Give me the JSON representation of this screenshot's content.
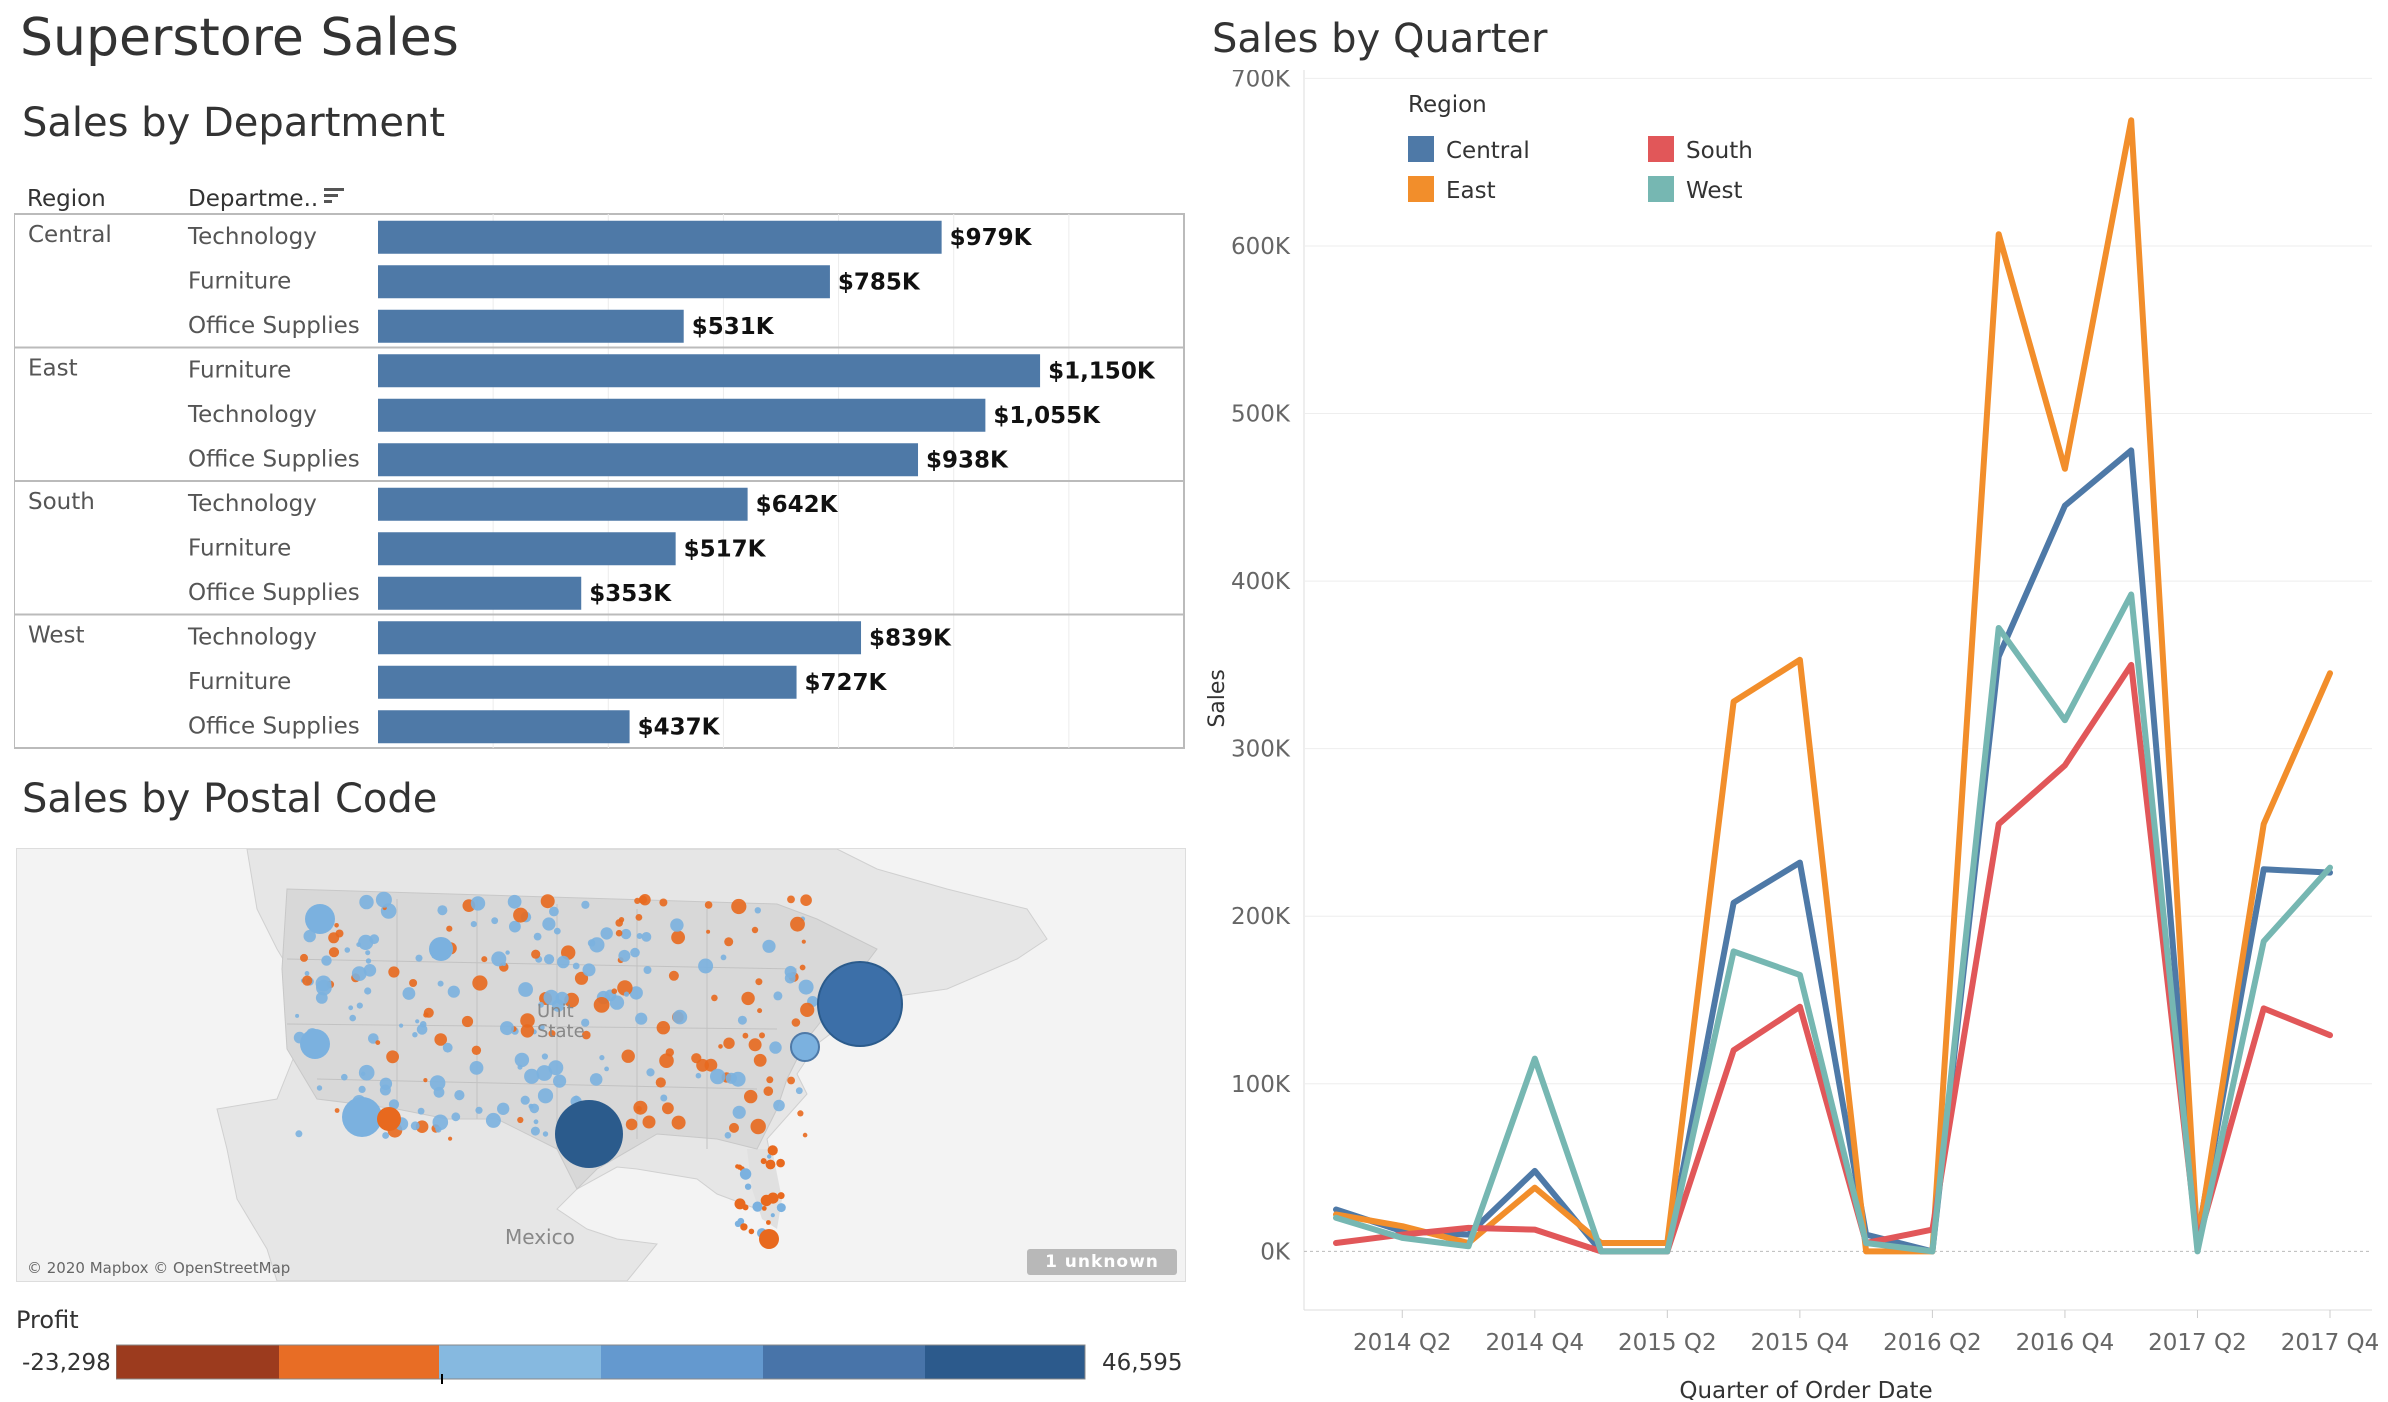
{
  "dashboard": {
    "title": "Superstore Sales"
  },
  "department_section": {
    "title": "Sales by Department",
    "region_header": "Region",
    "department_header": "Departme..",
    "sort_icon": "sort-icon"
  },
  "postal_section": {
    "title": "Sales by Postal Code",
    "attribution": "© 2020 Mapbox © OpenStreetMap",
    "unknown_badge": "1 unknown",
    "country_label": "Mexico",
    "us_label_line1": "Unit",
    "us_label_line2": "State",
    "profit_legend": {
      "title": "Profit",
      "min": "-23,298",
      "max": "46,595",
      "colors": [
        "#9c3b1e",
        "#e86d25",
        "#86b9e0",
        "#6499cf",
        "#4874a9",
        "#2c5a8c"
      ]
    }
  },
  "quarter_section": {
    "title": "Sales by Quarter",
    "legend_title": "Region"
  },
  "colors": {
    "bar": "#4e79a7",
    "central": "#4e79a7",
    "east": "#f28e2b",
    "south": "#e15759",
    "west": "#76b7b2",
    "profit_negative": "#e8691e",
    "profit_positive": "#7bb1df",
    "profit_high": "#2b5b8c"
  },
  "chart_data": [
    {
      "type": "bar",
      "orientation": "horizontal",
      "title": "Sales by Department",
      "row_headers": [
        "Region",
        "Departme.."
      ],
      "groups": [
        {
          "region": "Central",
          "rows": [
            {
              "department": "Technology",
              "value": 979000,
              "label": "$979K"
            },
            {
              "department": "Furniture",
              "value": 785000,
              "label": "$785K"
            },
            {
              "department": "Office Supplies",
              "value": 531000,
              "label": "$531K"
            }
          ]
        },
        {
          "region": "East",
          "rows": [
            {
              "department": "Furniture",
              "value": 1150000,
              "label": "$1,150K"
            },
            {
              "department": "Technology",
              "value": 1055000,
              "label": "$1,055K"
            },
            {
              "department": "Office Supplies",
              "value": 938000,
              "label": "$938K"
            }
          ]
        },
        {
          "region": "South",
          "rows": [
            {
              "department": "Technology",
              "value": 642000,
              "label": "$642K"
            },
            {
              "department": "Furniture",
              "value": 517000,
              "label": "$517K"
            },
            {
              "department": "Office Supplies",
              "value": 353000,
              "label": "$353K"
            }
          ]
        },
        {
          "region": "West",
          "rows": [
            {
              "department": "Technology",
              "value": 839000,
              "label": "$839K"
            },
            {
              "department": "Furniture",
              "value": 727000,
              "label": "$727K"
            },
            {
              "department": "Office Supplies",
              "value": 437000,
              "label": "$437K"
            }
          ]
        }
      ],
      "xlim": [
        0,
        1400000
      ],
      "grid": true
    },
    {
      "type": "line",
      "title": "Sales by Quarter",
      "xlabel": "Quarter of Order Date",
      "ylabel": "Sales",
      "x": [
        "2014 Q1",
        "2014 Q2",
        "2014 Q3",
        "2014 Q4",
        "2015 Q1",
        "2015 Q2",
        "2015 Q3",
        "2015 Q4",
        "2016 Q1",
        "2016 Q2",
        "2016 Q3",
        "2016 Q4",
        "2017 Q1",
        "2017 Q2",
        "2017 Q3",
        "2017 Q4"
      ],
      "x_tick_labels": [
        "2014 Q2",
        "2014 Q4",
        "2015 Q2",
        "2015 Q4",
        "2016 Q2",
        "2016 Q4",
        "2017 Q2",
        "2017 Q4"
      ],
      "y_ticks": [
        "0K",
        "100K",
        "200K",
        "300K",
        "400K",
        "500K",
        "600K",
        "700K"
      ],
      "ylim": [
        -35000,
        705000
      ],
      "legend": {
        "title": "Region",
        "position": "top-left"
      },
      "grid": true,
      "series": [
        {
          "name": "Central",
          "color": "#4e79a7",
          "values": [
            25000,
            12000,
            10000,
            48000,
            0,
            0,
            208000,
            232000,
            10000,
            0,
            355000,
            445000,
            478000,
            8000,
            228000,
            226000
          ]
        },
        {
          "name": "East",
          "color": "#f28e2b",
          "values": [
            22000,
            15000,
            5000,
            38000,
            5000,
            5000,
            328000,
            353000,
            0,
            0,
            607000,
            467000,
            675000,
            5000,
            255000,
            345000
          ]
        },
        {
          "name": "South",
          "color": "#e15759",
          "values": [
            5000,
            10000,
            14000,
            13000,
            0,
            0,
            120000,
            146000,
            5000,
            13000,
            255000,
            290000,
            350000,
            5000,
            145000,
            129000
          ]
        },
        {
          "name": "West",
          "color": "#76b7b2",
          "values": [
            20000,
            8000,
            3000,
            115000,
            0,
            0,
            179000,
            165000,
            5000,
            0,
            372000,
            317000,
            392000,
            0,
            185000,
            229000
          ]
        }
      ]
    }
  ]
}
